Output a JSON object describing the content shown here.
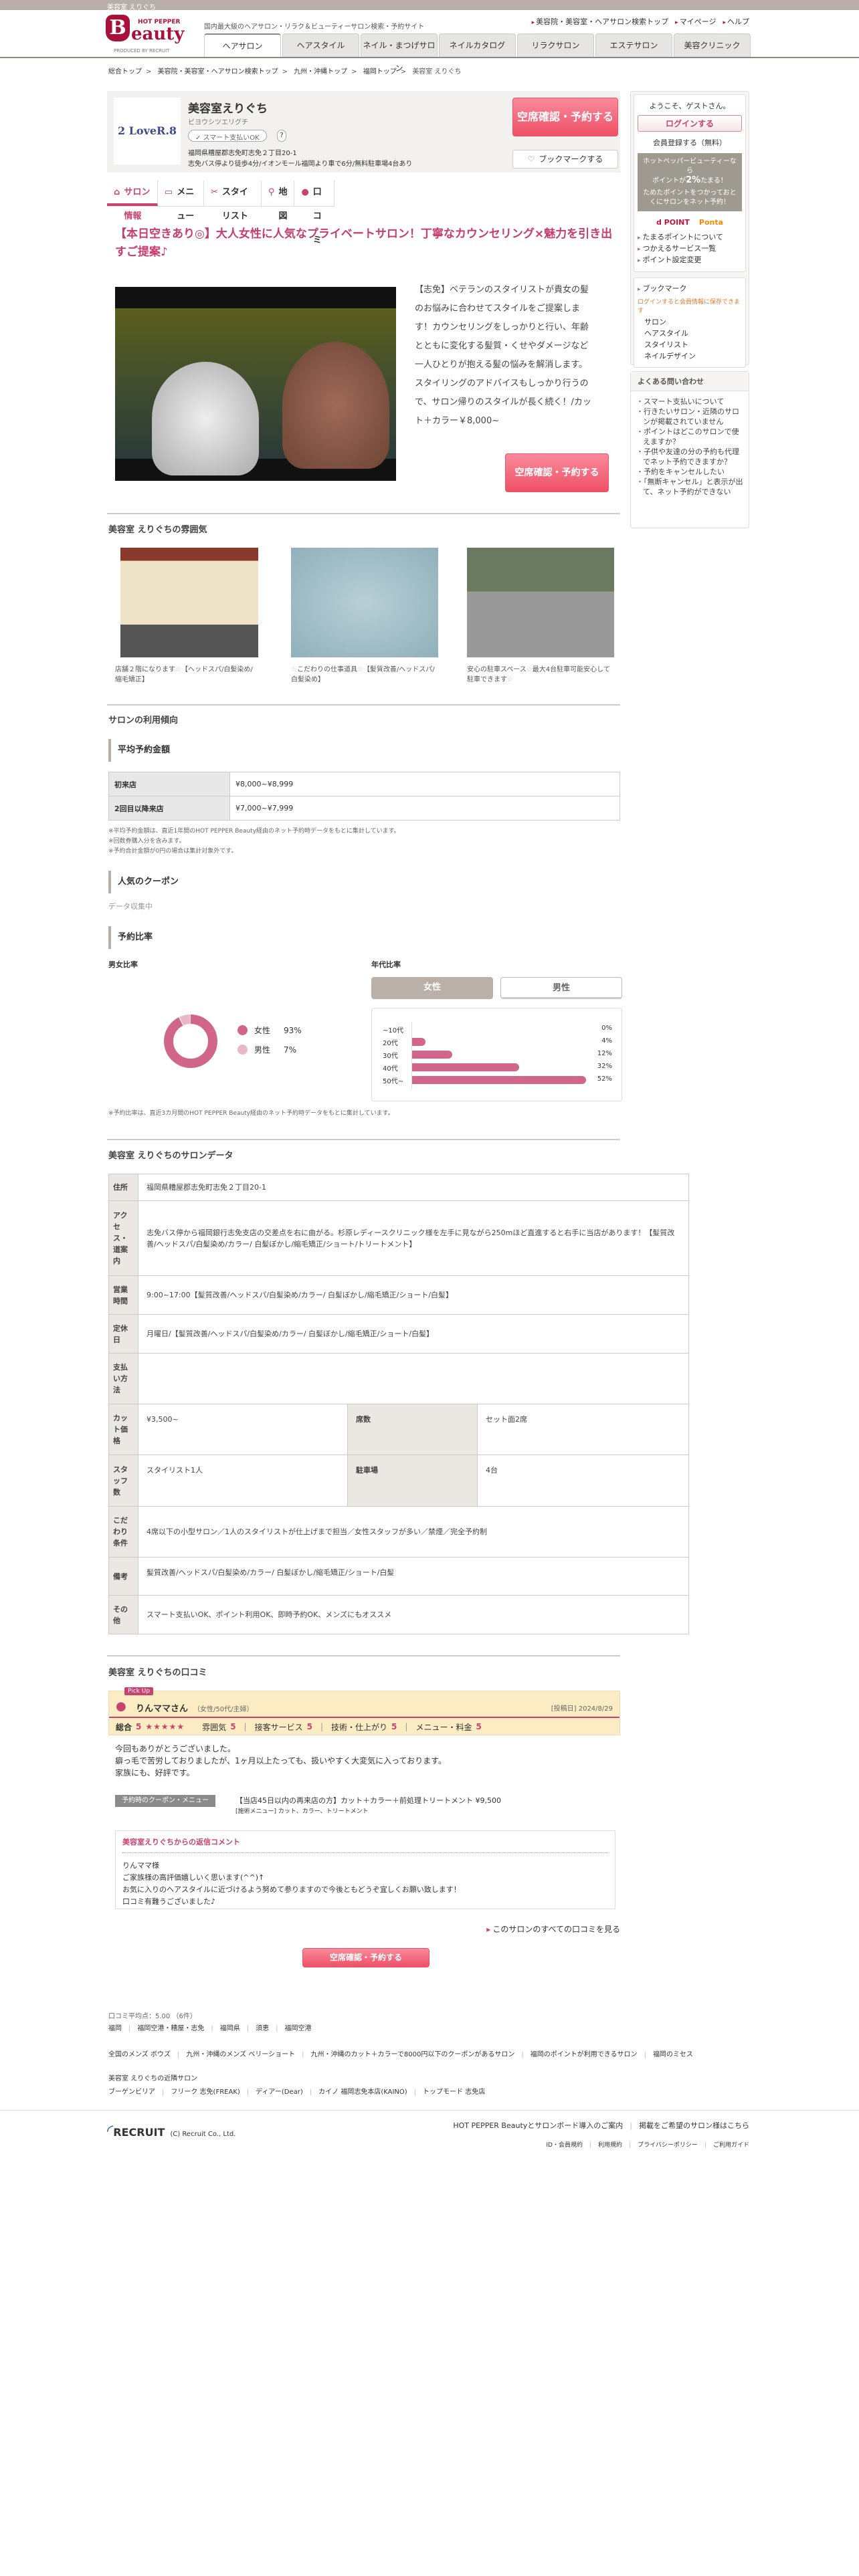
{
  "topbar": {
    "title": "美容室 えりぐち"
  },
  "header": {
    "logo_hot": "HOT PEPPER",
    "logo_b": "B",
    "logo_eauty": "eauty",
    "logo_produced": "PRODUCED BY RECRUIT",
    "tagline": "国内最大級のヘアサロン・リラク＆ビューティーサロン検索・予約サイト",
    "links": [
      "美容院・美容室・ヘアサロン検索トップ",
      "マイページ",
      "ヘルプ"
    ],
    "tabs": [
      {
        "label": "ヘアサロン",
        "active": true
      },
      {
        "label": "ヘアスタイル"
      },
      {
        "label": "ネイル・まつげサロン"
      },
      {
        "label": "ネイルカタログ"
      },
      {
        "label": "リラクサロン"
      },
      {
        "label": "エステサロン"
      },
      {
        "label": "美容クリニック"
      }
    ]
  },
  "breadcrumb": [
    "総合トップ",
    "美容院・美容室・ヘアサロン検索トップ",
    "九州・沖縄トップ",
    "福岡トップ",
    "美容室 えりぐち"
  ],
  "salon": {
    "logo_text": "2 LoveR.8",
    "name": "美容室えりぐち",
    "kana": "ビヨウシツエリグチ",
    "smart_pay": "✓ スマート支払いOK",
    "help": "?",
    "address": "福岡県糟屋郡志免町志免２丁目20-1",
    "access": "志免バス停より徒歩4分/イオンモール福岡より車で6分/無料駐車場4台あり",
    "reserve_label": "空席確認・予約する",
    "bookmark_label": "ブックマークする"
  },
  "nav": [
    {
      "label": "サロン情報",
      "icon": "home-icon",
      "active": true
    },
    {
      "label": "メニュー",
      "icon": "book-icon"
    },
    {
      "label": "スタイリスト",
      "icon": "scissors-icon"
    },
    {
      "label": "地図",
      "icon": "map-pin-icon"
    },
    {
      "label": "口コミ",
      "icon": "chat-icon"
    }
  ],
  "main": {
    "headline": "【本日空きあり◎】大人女性に人気なプライベートサロン！丁寧なカウンセリング×魅力を引き出すご提案♪",
    "catch": "【志免】ベテランのスタイリストが貴女の髪のお悩みに合わせてスタイルをご提案します！カウンセリングをしっかりと行い、年齢とともに変化する髪質・くせやダメージなど一人ひとりが抱える髪の悩みを解消します。スタイリングのアドバイスもしっかり行うので、サロン帰りのスタイルが長く続く！/カット＋カラー￥8,000~"
  },
  "atmosphere": {
    "title": "美容室 えりぐちの雰囲気",
    "photos": [
      {
        "caption_a": "店舗２階になります",
        "caption_b": "【ヘッドスパ/白髪染め/縮毛矯正】"
      },
      {
        "caption_a": "こだわりの仕事道具",
        "caption_b": "【髪質改善/ヘッドスパ/白髪染め】"
      },
      {
        "caption_a": "安心の駐車スペース",
        "caption_b": "最大4台駐車可能安心して駐車できます"
      }
    ]
  },
  "trends": {
    "title": "サロンの利用傾向",
    "avg_title": "平均予約金額",
    "avg_rows": [
      {
        "label": "初来店",
        "value": "¥8,000~¥8,999"
      },
      {
        "label": "2回目以降来店",
        "value": "¥7,000~¥7,999"
      }
    ],
    "avg_notes": [
      "※平均予約金額は、直近1年間のHOT PEPPER Beauty経由のネット予約時データをもとに集計しています。",
      "※回数券購入分を含みます。",
      "※予約合計金額が0円の場合は集計対象外です。"
    ],
    "coupon_title": "人気のクーポン",
    "coupon_status": "データ収集中",
    "ratio_title": "予約比率",
    "gender_title": "男女比率",
    "age_title": "年代比率",
    "toggle": [
      "女性",
      "男性"
    ],
    "ratio_note": "※予約比率は、直近3カ月間のHOT PEPPER Beauty経由のネット予約時データをもとに集計しています。"
  },
  "chart_data": [
    {
      "type": "pie",
      "title": "男女比率",
      "categories": [
        "女性",
        "男性"
      ],
      "values": [
        93,
        7
      ],
      "labels": [
        "93%",
        "7%"
      ],
      "colors": [
        "#d0678a",
        "#eab7c6"
      ],
      "donut": true,
      "legend": "right"
    },
    {
      "type": "bar",
      "orientation": "horizontal",
      "title": "年代比率",
      "filter": "女性",
      "categories": [
        "~10代",
        "20代",
        "30代",
        "40代",
        "50代~"
      ],
      "values": [
        0,
        4,
        12,
        32,
        52
      ],
      "labels": [
        "0%",
        "4%",
        "12%",
        "32%",
        "52%"
      ],
      "color": "#d0678a"
    }
  ],
  "salondata": {
    "title": "美容室 えりぐちのサロンデータ",
    "address_label": "住所",
    "address": "福岡県糟屋郡志免町志免２丁目20-1",
    "access_label": "アクセス・道案内",
    "access": "志免バス停から福岡銀行志免支店の交差点を右に曲がる。杉原レディースクリニック様を左手に見ながら250mほど直進すると右手に当店があります！【髪質改善/ヘッドスパ/白髪染め/カラー/ 白髪ぼかし/縮毛矯正/ショート/トリートメント】",
    "hours_label": "営業時間",
    "hours": "9:00~17:00【髪質改善/ヘッドスパ/白髪染め/カラー/ 白髪ぼかし/縮毛矯正/ショート/白髪】",
    "holiday_label": "定休日",
    "holiday": "月曜日/【髪質改善/ヘッドスパ/白髪染め/カラー/ 白髪ぼかし/縮毛矯正/ショート/白髪】",
    "payment_label": "支払い方法",
    "payment": "",
    "cut_label": "カット価格",
    "cut": "¥3,500~",
    "seats_label": "席数",
    "seats": "セット面2席",
    "staff_label": "スタッフ数",
    "staff": "スタイリスト1人",
    "parking_label": "駐車場",
    "parking": "4台",
    "kodawari_label": "こだわり条件",
    "kodawari": "4席以下の小型サロン／1人のスタイリストが仕上げまで担当／女性スタッフが多い／禁煙／完全予約制",
    "remarks_label": "備考",
    "remarks": "髪質改善/ヘッドスパ/白髪染め/カラー/ 白髪ぼかし/縮毛矯正/ショート/白髪",
    "other_label": "その他",
    "other": "スマート支払いOK、ポイント利用OK、即時予約OK、メンズにもオススメ"
  },
  "reviews": {
    "title": "美容室 えりぐちの口コミ",
    "pickup": "Pick Up",
    "name": "りんママさん",
    "meta": "（女性/50代/主婦）",
    "date": "[投稿日] 2024/8/29",
    "overall_label": "総合",
    "overall": "5",
    "stars": "★★★★★",
    "rating_value": 5,
    "scores": [
      {
        "label": "雰囲気",
        "value": "5"
      },
      {
        "label": "接客サービス",
        "value": "5"
      },
      {
        "label": "技術・仕上がり",
        "value": "5"
      },
      {
        "label": "メニュー・料金",
        "value": "5"
      }
    ],
    "body": [
      "今回もありがとうございました。",
      "癖っ毛で苦労しておりましたが、1ヶ月以上たっても、扱いやすく大変気に入っております。",
      "家族にも、好評です。"
    ],
    "coupon_label": "予約時のクーポン・メニュー",
    "coupon": "【当店45日以内の再来店の方】カット＋カラー＋前処理トリートメント ¥9,500",
    "coupon_menu": "[施術メニュー] カット、カラー、トリートメント",
    "reply_title": "美容室えりぐちからの返信コメント",
    "reply": [
      "りんママ様",
      "ご家族様の高評価嬉しいく思います(^^)↑",
      "お気に入りのヘアスタイルに近づけるよう努めて参りますので今後ともどうぞ宜しくお願い致します！",
      "口コミ有難うございました♪"
    ],
    "all_link": "このサロンのすべての口コミを見る",
    "reserve_label": "空席確認・予約する"
  },
  "footer": {
    "avg": "口コミ平均点：5.00 （6件）",
    "areas": [
      "福岡",
      "福岡空港・糟屋・志免",
      "福岡県",
      "須恵",
      "福岡空港"
    ],
    "features": [
      "全国のメンズ ボウズ",
      "九州・沖縄のメンズ ベリーショート",
      "九州・沖縄のカット＋カラーで8000円以下のクーポンがあるサロン",
      "福岡のポイントが利用できるサロン",
      "福岡のミセス"
    ],
    "nearby_title": "美容室 えりぐちの近隣サロン",
    "nearby": [
      "ブーゲンビリア",
      "フリーク 志免(FREAK)",
      "ディアー(Dear)",
      "カイノ 福岡志免本店(KAINO)",
      "トップモード 志免店"
    ],
    "recruit": "RECRUIT",
    "copyright": "(C) Recruit Co., Ltd.",
    "links1": [
      "HOT PEPPER Beautyとサロンボード導入のご案内",
      "掲載をご希望のサロン様はこちら"
    ],
    "links2": [
      "ID・会員規約",
      "利用規約",
      "プライバシーポリシー",
      "ご利用ガイド"
    ]
  },
  "sidebar": {
    "welcome": "ようこそ、ゲストさん。",
    "login": "ログインする",
    "register": "会員登録する（無料）",
    "promo1": "ホットペッパービューティーなら",
    "promo2a": "ポイントが",
    "promo2b": "2%",
    "promo2c": "たまる！",
    "promo3": "ためたポイントをつかっておとくにサロンをネット予約！",
    "dpoint": "d POINT",
    "ponta": "Ponta",
    "point_links": [
      "たまるポイントについて",
      "つかえるサービス一覧",
      "ポイント設定変更"
    ],
    "bookmark": "ブックマーク",
    "bookmark_note": "ログインすると会員情報に保存できます",
    "bookmark_items": [
      "サロン",
      "ヘアスタイル",
      "スタイリスト",
      "ネイルデザイン"
    ],
    "faq_title": "よくある問い合わせ",
    "faq": [
      "スマート支払いについて",
      "行きたいサロン・近隣のサロンが掲載されていません",
      "ポイントはどこのサロンで使えますか？",
      "子供や友達の分の予約も代理でネット予約できますか？",
      "予約をキャンセルしたい",
      "「無断キャンセル」と表示が出て、ネット予約ができない"
    ]
  }
}
